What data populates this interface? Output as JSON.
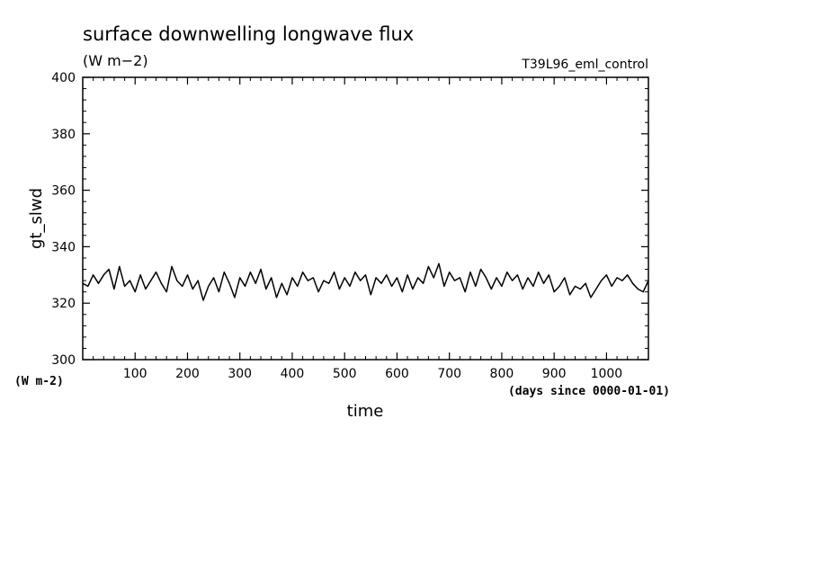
{
  "chart_data": {
    "type": "line",
    "title": "surface downwelling longwave flux",
    "subtitle": "(W m−2)",
    "run_label": "T39L96_eml_control",
    "xlabel": "time",
    "x_units": "(days since 0000-01-01)",
    "ylabel": "gt_slwd",
    "y_units": "(W m-2)",
    "xlim": [
      0,
      1080
    ],
    "ylim": [
      300,
      400
    ],
    "xticks": [
      100,
      200,
      300,
      400,
      500,
      600,
      700,
      800,
      900,
      1000
    ],
    "yticks": [
      300,
      320,
      340,
      360,
      380,
      400
    ],
    "grid": false,
    "series": [
      {
        "color": "#000000",
        "x": [
          0,
          10,
          20,
          30,
          40,
          50,
          60,
          70,
          80,
          90,
          100,
          110,
          120,
          130,
          140,
          150,
          160,
          170,
          180,
          190,
          200,
          210,
          220,
          230,
          240,
          250,
          260,
          270,
          280,
          290,
          300,
          310,
          320,
          330,
          340,
          350,
          360,
          370,
          380,
          390,
          400,
          410,
          420,
          430,
          440,
          450,
          460,
          470,
          480,
          490,
          500,
          510,
          520,
          530,
          540,
          550,
          560,
          570,
          580,
          590,
          600,
          610,
          620,
          630,
          640,
          650,
          660,
          670,
          680,
          690,
          700,
          710,
          720,
          730,
          740,
          750,
          760,
          770,
          780,
          790,
          800,
          810,
          820,
          830,
          840,
          850,
          860,
          870,
          880,
          890,
          900,
          910,
          920,
          930,
          940,
          950,
          960,
          970,
          980,
          990,
          1000,
          1010,
          1020,
          1030,
          1040,
          1050,
          1060,
          1070,
          1080
        ],
        "y": [
          327,
          326,
          330,
          327,
          330,
          332,
          325,
          333,
          326,
          328,
          324,
          330,
          325,
          328,
          331,
          327,
          324,
          333,
          328,
          326,
          330,
          325,
          328,
          321,
          326,
          329,
          324,
          331,
          327,
          322,
          329,
          326,
          331,
          327,
          332,
          325,
          329,
          322,
          327,
          323,
          329,
          326,
          331,
          328,
          329,
          324,
          328,
          327,
          331,
          325,
          329,
          326,
          331,
          328,
          330,
          323,
          329,
          327,
          330,
          326,
          329,
          324,
          330,
          325,
          329,
          327,
          333,
          329,
          334,
          326,
          331,
          328,
          329,
          324,
          331,
          326,
          332,
          329,
          325,
          329,
          326,
          331,
          328,
          330,
          325,
          329,
          326,
          331,
          327,
          330,
          324,
          326,
          329,
          323,
          326,
          325,
          327,
          322,
          325,
          328,
          330,
          326,
          329,
          328,
          330,
          327,
          325,
          324,
          328
        ]
      }
    ]
  }
}
